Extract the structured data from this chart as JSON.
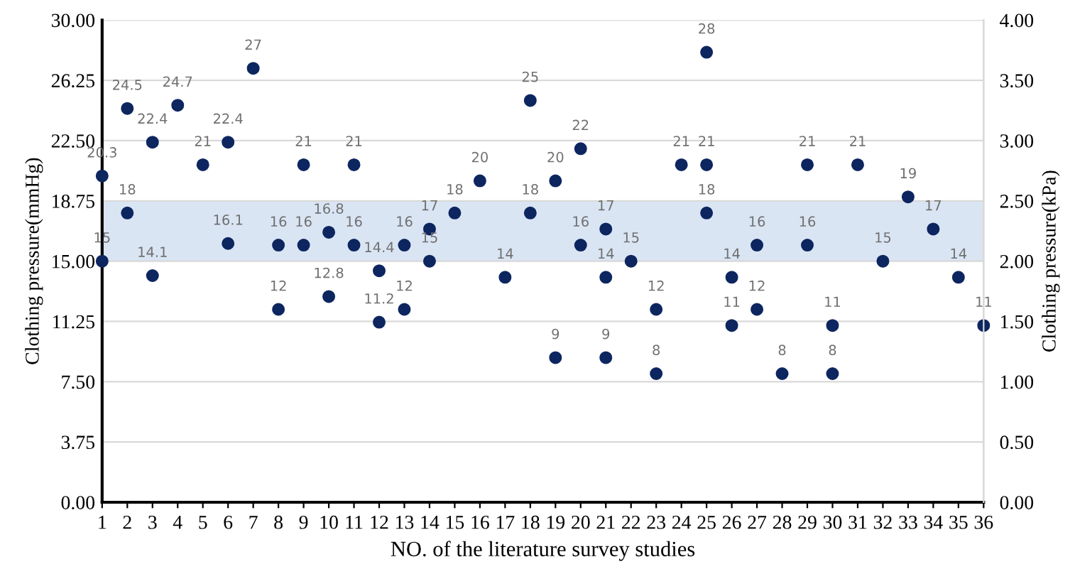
{
  "chart_data": {
    "type": "scatter",
    "xlabel": "NO. of the literature survey studies",
    "ylabel": "Clothing pressure(mmHg)",
    "y2label": "Clothing pressure(kPa)",
    "x": [
      1,
      1,
      2,
      2,
      3,
      3,
      4,
      5,
      6,
      6,
      7,
      8,
      8,
      9,
      9,
      10,
      10,
      11,
      11,
      12,
      12,
      13,
      13,
      14,
      14,
      15,
      16,
      17,
      18,
      18,
      19,
      19,
      20,
      20,
      21,
      21,
      21,
      22,
      23,
      23,
      24,
      25,
      25,
      25,
      26,
      26,
      27,
      27,
      28,
      29,
      29,
      30,
      30,
      31,
      32,
      33,
      34,
      35,
      36
    ],
    "series": [
      {
        "color": "#0d2660",
        "values": [
          20.3,
          15,
          24.5,
          18,
          22.4,
          14.1,
          24.7,
          21,
          22.4,
          16.1,
          27,
          16,
          12,
          21,
          16,
          16.8,
          12.8,
          21,
          16,
          14.4,
          11.2,
          16,
          12,
          17,
          15,
          18,
          20,
          14,
          25,
          18,
          20,
          9,
          22,
          16,
          17,
          14,
          9,
          15,
          12,
          8,
          21,
          28,
          21,
          18,
          14,
          11,
          16,
          12,
          8,
          21,
          16,
          11,
          8,
          21,
          15,
          19,
          17,
          14,
          11
        ]
      }
    ],
    "data_labels": true,
    "marker": "circle",
    "xlim": [
      1,
      36
    ],
    "xticks": [
      1,
      2,
      3,
      4,
      5,
      6,
      7,
      8,
      9,
      10,
      11,
      12,
      13,
      14,
      15,
      16,
      17,
      18,
      19,
      20,
      21,
      22,
      23,
      24,
      25,
      26,
      27,
      28,
      29,
      30,
      31,
      32,
      33,
      34,
      35,
      36
    ],
    "ylim": [
      0,
      30
    ],
    "yticks": [
      {
        "value": 0,
        "label": "0.00"
      },
      {
        "value": 3.75,
        "label": "3.75"
      },
      {
        "value": 7.5,
        "label": "7.50"
      },
      {
        "value": 11.25,
        "label": "11.25"
      },
      {
        "value": 15,
        "label": "15.00"
      },
      {
        "value": 18.75,
        "label": "18.75"
      },
      {
        "value": 22.5,
        "label": "22.50"
      },
      {
        "value": 26.25,
        "label": "26.25"
      },
      {
        "value": 30,
        "label": "30.00"
      }
    ],
    "y2lim": [
      0,
      4
    ],
    "y2ticks": [
      {
        "value": 0,
        "label": "0.00"
      },
      {
        "value": 0.5,
        "label": "0.50"
      },
      {
        "value": 1,
        "label": "1.00"
      },
      {
        "value": 1.5,
        "label": "1.50"
      },
      {
        "value": 2,
        "label": "2.00"
      },
      {
        "value": 2.5,
        "label": "2.50"
      },
      {
        "value": 3,
        "label": "3.00"
      },
      {
        "value": 3.5,
        "label": "3.50"
      },
      {
        "value": 4,
        "label": "4.00"
      }
    ],
    "bands": [
      {
        "axis": "y",
        "from": 15,
        "to": 18.75,
        "color": "#dae5f4"
      }
    ],
    "grid": "y"
  }
}
